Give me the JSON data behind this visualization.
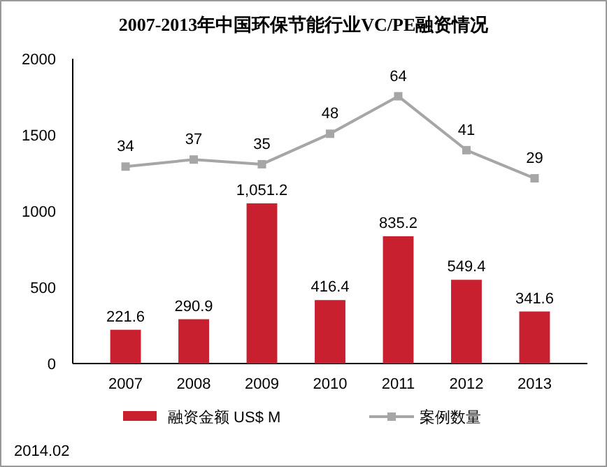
{
  "chart_data": {
    "type": "bar",
    "title": "2007-2013年中国环保节能行业VC/PE融资情况",
    "categories": [
      "2007",
      "2008",
      "2009",
      "2010",
      "2011",
      "2012",
      "2013"
    ],
    "series": [
      {
        "name": "融资金额 US$ M",
        "color": "#c8202f",
        "values": [
          221.6,
          290.9,
          1051.2,
          416.4,
          835.2,
          549.4,
          341.6
        ],
        "value_labels": [
          "221.6",
          "290.9",
          "1,051.2",
          "416.4",
          "835.2",
          "549.4",
          "341.6"
        ]
      },
      {
        "name": "案例数量",
        "type": "line",
        "axis": "y2",
        "color": "#a6a6a6",
        "values": [
          34,
          37,
          35,
          48,
          64,
          41,
          29
        ],
        "value_labels": [
          "34",
          "37",
          "35",
          "48",
          "64",
          "41",
          "29"
        ]
      }
    ],
    "ylim": [
      0,
      2000
    ],
    "yticks": [
      0,
      500,
      1000,
      1500,
      2000
    ],
    "y2lim": [
      -50,
      80
    ],
    "tick_labels": "xy",
    "grid": false,
    "legend": "bottom",
    "marker": "square",
    "annotations": [
      "2014.02"
    ]
  }
}
